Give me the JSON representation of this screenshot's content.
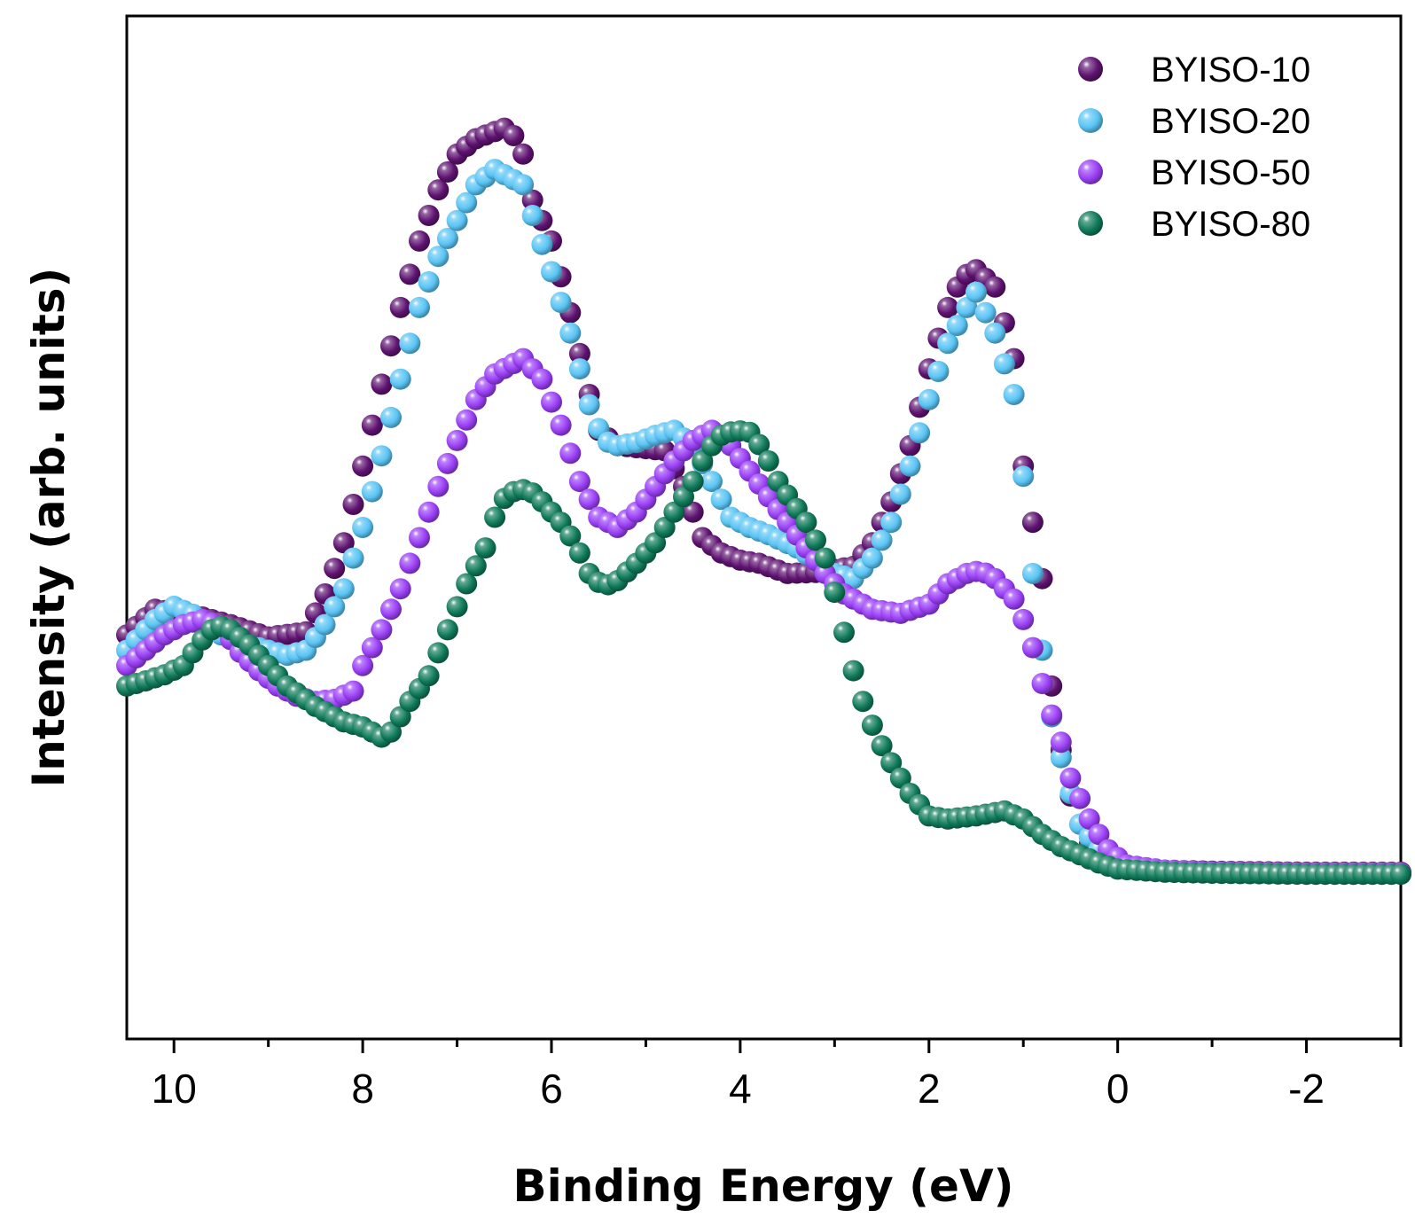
{
  "chart_data": {
    "type": "scatter",
    "title": "",
    "xlabel": "Binding Energy (eV)",
    "ylabel": "Intensity (arb. units)",
    "xlim": [
      10.5,
      -3.0
    ],
    "ylim": [
      0,
      100
    ],
    "x_ticks": [
      10,
      8,
      6,
      4,
      2,
      0,
      -2
    ],
    "x_tick_labels": [
      "10",
      "8",
      "6",
      "4",
      "2",
      "0",
      "-2"
    ],
    "y_ticks_shown": false,
    "grid": false,
    "legend_position": "top-right",
    "series": [
      {
        "name": "BYISO-10",
        "color": "#5e1270",
        "points": [
          [
            10.5,
            39.5
          ],
          [
            10.2,
            42.0
          ],
          [
            9.8,
            41.5
          ],
          [
            9.4,
            40.5
          ],
          [
            9.0,
            39.3
          ],
          [
            8.6,
            39.8
          ],
          [
            8.4,
            43.5
          ],
          [
            8.2,
            48.5
          ],
          [
            8.0,
            56.0
          ],
          [
            7.8,
            64.0
          ],
          [
            7.6,
            71.5
          ],
          [
            7.4,
            78.0
          ],
          [
            7.2,
            83.0
          ],
          [
            7.0,
            86.5
          ],
          [
            6.8,
            88.0
          ],
          [
            6.6,
            88.7
          ],
          [
            6.45,
            89.2
          ],
          [
            6.3,
            86.5
          ],
          [
            6.2,
            82.0
          ],
          [
            6.0,
            78.0
          ],
          [
            5.8,
            71.0
          ],
          [
            5.6,
            63.0
          ],
          [
            5.5,
            59.5
          ],
          [
            5.3,
            58.0
          ],
          [
            5.1,
            57.8
          ],
          [
            4.8,
            57.5
          ],
          [
            4.6,
            54.0
          ],
          [
            4.4,
            49.0
          ],
          [
            4.2,
            47.5
          ],
          [
            4.0,
            46.8
          ],
          [
            3.8,
            46.5
          ],
          [
            3.5,
            45.5
          ],
          [
            3.2,
            45.6
          ],
          [
            3.0,
            45.9
          ],
          [
            2.8,
            46.2
          ],
          [
            2.6,
            48.5
          ],
          [
            2.4,
            52.5
          ],
          [
            2.2,
            58.0
          ],
          [
            2.0,
            65.5
          ],
          [
            1.8,
            71.5
          ],
          [
            1.65,
            74.5
          ],
          [
            1.5,
            75.2
          ],
          [
            1.3,
            73.5
          ],
          [
            1.1,
            66.5
          ],
          [
            1.0,
            56.0
          ],
          [
            0.8,
            45.0
          ],
          [
            0.75,
            38.0
          ],
          [
            0.65,
            31.0
          ],
          [
            0.55,
            25.5
          ],
          [
            0.45,
            22.0
          ],
          [
            0.3,
            19.0
          ],
          [
            0.1,
            17.5
          ],
          [
            -0.1,
            16.8
          ],
          [
            -0.5,
            16.5
          ],
          [
            -1.0,
            16.4
          ],
          [
            -2.0,
            16.3
          ],
          [
            -3.0,
            16.3
          ]
        ]
      },
      {
        "name": "BYISO-20",
        "color": "#5ac4f4",
        "points": [
          [
            10.5,
            38.0
          ],
          [
            10.2,
            41.0
          ],
          [
            10.0,
            42.3
          ],
          [
            9.8,
            41.5
          ],
          [
            9.5,
            39.5
          ],
          [
            9.2,
            38.5
          ],
          [
            8.8,
            37.5
          ],
          [
            8.6,
            38.0
          ],
          [
            8.4,
            40.5
          ],
          [
            8.2,
            44.0
          ],
          [
            8.0,
            50.0
          ],
          [
            7.8,
            57.0
          ],
          [
            7.6,
            64.5
          ],
          [
            7.4,
            71.5
          ],
          [
            7.2,
            76.5
          ],
          [
            7.0,
            80.0
          ],
          [
            6.8,
            83.5
          ],
          [
            6.6,
            85.0
          ],
          [
            6.5,
            84.5
          ],
          [
            6.3,
            83.5
          ],
          [
            6.15,
            79.0
          ],
          [
            6.0,
            75.0
          ],
          [
            5.8,
            69.0
          ],
          [
            5.6,
            62.0
          ],
          [
            5.45,
            58.5
          ],
          [
            5.3,
            58.0
          ],
          [
            5.1,
            58.3
          ],
          [
            4.9,
            59.0
          ],
          [
            4.7,
            59.5
          ],
          [
            4.5,
            58.0
          ],
          [
            4.3,
            54.5
          ],
          [
            4.1,
            51.0
          ],
          [
            3.9,
            50.0
          ],
          [
            3.7,
            49.3
          ],
          [
            3.4,
            48.0
          ],
          [
            3.0,
            45.5
          ],
          [
            2.8,
            45.0
          ],
          [
            2.6,
            47.0
          ],
          [
            2.4,
            50.5
          ],
          [
            2.2,
            56.0
          ],
          [
            2.0,
            62.5
          ],
          [
            1.8,
            68.0
          ],
          [
            1.6,
            71.5
          ],
          [
            1.5,
            73.0
          ],
          [
            1.3,
            69.0
          ],
          [
            1.1,
            63.0
          ],
          [
            1.0,
            55.0
          ],
          [
            0.9,
            45.5
          ],
          [
            0.8,
            38.0
          ],
          [
            0.7,
            31.5
          ],
          [
            0.55,
            25.5
          ],
          [
            0.4,
            21.0
          ],
          [
            0.2,
            18.5
          ],
          [
            0.0,
            17.0
          ],
          [
            -0.5,
            16.4
          ],
          [
            -1.0,
            16.3
          ],
          [
            -2.0,
            16.2
          ],
          [
            -3.0,
            16.2
          ]
        ]
      },
      {
        "name": "BYISO-50",
        "color": "#9a3ff5",
        "points": [
          [
            10.5,
            36.5
          ],
          [
            10.3,
            38.0
          ],
          [
            10.1,
            39.5
          ],
          [
            9.9,
            40.5
          ],
          [
            9.7,
            41.0
          ],
          [
            9.5,
            40.3
          ],
          [
            9.3,
            37.8
          ],
          [
            9.1,
            36.0
          ],
          [
            8.9,
            34.5
          ],
          [
            8.7,
            33.5
          ],
          [
            8.5,
            33.0
          ],
          [
            8.3,
            33.2
          ],
          [
            8.1,
            34.0
          ],
          [
            8.0,
            36.5
          ],
          [
            7.8,
            40.0
          ],
          [
            7.6,
            44.0
          ],
          [
            7.4,
            49.0
          ],
          [
            7.2,
            54.0
          ],
          [
            7.0,
            58.5
          ],
          [
            6.8,
            62.5
          ],
          [
            6.6,
            65.0
          ],
          [
            6.45,
            65.8
          ],
          [
            6.3,
            66.5
          ],
          [
            6.1,
            64.5
          ],
          [
            5.9,
            60.0
          ],
          [
            5.7,
            54.5
          ],
          [
            5.5,
            51.0
          ],
          [
            5.3,
            50.0
          ],
          [
            5.1,
            51.5
          ],
          [
            4.9,
            54.0
          ],
          [
            4.7,
            56.5
          ],
          [
            4.5,
            58.5
          ],
          [
            4.3,
            59.5
          ],
          [
            4.1,
            58.0
          ],
          [
            3.9,
            55.5
          ],
          [
            3.7,
            53.0
          ],
          [
            3.5,
            50.5
          ],
          [
            3.3,
            48.0
          ],
          [
            3.1,
            45.5
          ],
          [
            2.9,
            43.5
          ],
          [
            2.6,
            42.0
          ],
          [
            2.3,
            41.6
          ],
          [
            2.0,
            42.5
          ],
          [
            1.8,
            44.5
          ],
          [
            1.6,
            45.5
          ],
          [
            1.45,
            45.8
          ],
          [
            1.3,
            45.0
          ],
          [
            1.1,
            43.0
          ],
          [
            0.95,
            40.0
          ],
          [
            0.85,
            36.5
          ],
          [
            0.75,
            33.0
          ],
          [
            0.6,
            29.0
          ],
          [
            0.5,
            25.5
          ],
          [
            0.3,
            21.5
          ],
          [
            0.1,
            18.5
          ],
          [
            -0.1,
            17.0
          ],
          [
            -0.5,
            16.5
          ],
          [
            -1.0,
            16.3
          ],
          [
            -2.0,
            16.2
          ],
          [
            -3.0,
            16.2
          ]
        ]
      },
      {
        "name": "BYISO-80",
        "color": "#0f7a59",
        "points": [
          [
            10.5,
            34.5
          ],
          [
            10.3,
            35.0
          ],
          [
            10.1,
            35.6
          ],
          [
            9.9,
            36.5
          ],
          [
            9.7,
            39.0
          ],
          [
            9.55,
            40.5
          ],
          [
            9.4,
            40.0
          ],
          [
            9.2,
            38.5
          ],
          [
            9.0,
            36.5
          ],
          [
            8.8,
            34.5
          ],
          [
            8.5,
            32.5
          ],
          [
            8.2,
            31.0
          ],
          [
            8.0,
            30.5
          ],
          [
            7.8,
            29.5
          ],
          [
            7.7,
            30.0
          ],
          [
            7.5,
            33.0
          ],
          [
            7.3,
            35.5
          ],
          [
            7.1,
            40.0
          ],
          [
            6.9,
            44.5
          ],
          [
            6.7,
            48.0
          ],
          [
            6.55,
            52.5
          ],
          [
            6.4,
            53.5
          ],
          [
            6.25,
            53.8
          ],
          [
            6.1,
            52.5
          ],
          [
            5.9,
            50.5
          ],
          [
            5.75,
            48.5
          ],
          [
            5.6,
            45.5
          ],
          [
            5.45,
            44.2
          ],
          [
            5.3,
            44.8
          ],
          [
            5.1,
            46.5
          ],
          [
            4.9,
            48.5
          ],
          [
            4.7,
            51.5
          ],
          [
            4.5,
            54.5
          ],
          [
            4.35,
            57.5
          ],
          [
            4.2,
            59.0
          ],
          [
            4.05,
            59.5
          ],
          [
            3.9,
            59.3
          ],
          [
            3.75,
            57.5
          ],
          [
            3.6,
            54.5
          ],
          [
            3.45,
            52.5
          ],
          [
            3.3,
            50.5
          ],
          [
            3.1,
            47.0
          ],
          [
            2.95,
            42.0
          ],
          [
            2.85,
            37.5
          ],
          [
            2.7,
            33.0
          ],
          [
            2.55,
            29.5
          ],
          [
            2.4,
            27.0
          ],
          [
            2.2,
            24.0
          ],
          [
            2.0,
            21.8
          ],
          [
            1.8,
            21.5
          ],
          [
            1.5,
            21.8
          ],
          [
            1.2,
            22.3
          ],
          [
            1.0,
            21.5
          ],
          [
            0.8,
            20.0
          ],
          [
            0.6,
            18.8
          ],
          [
            0.4,
            18.0
          ],
          [
            0.2,
            17.2
          ],
          [
            0.0,
            16.6
          ],
          [
            -0.5,
            16.3
          ],
          [
            -1.0,
            16.2
          ],
          [
            -2.0,
            16.1
          ],
          [
            -3.0,
            16.1
          ]
        ]
      }
    ]
  }
}
